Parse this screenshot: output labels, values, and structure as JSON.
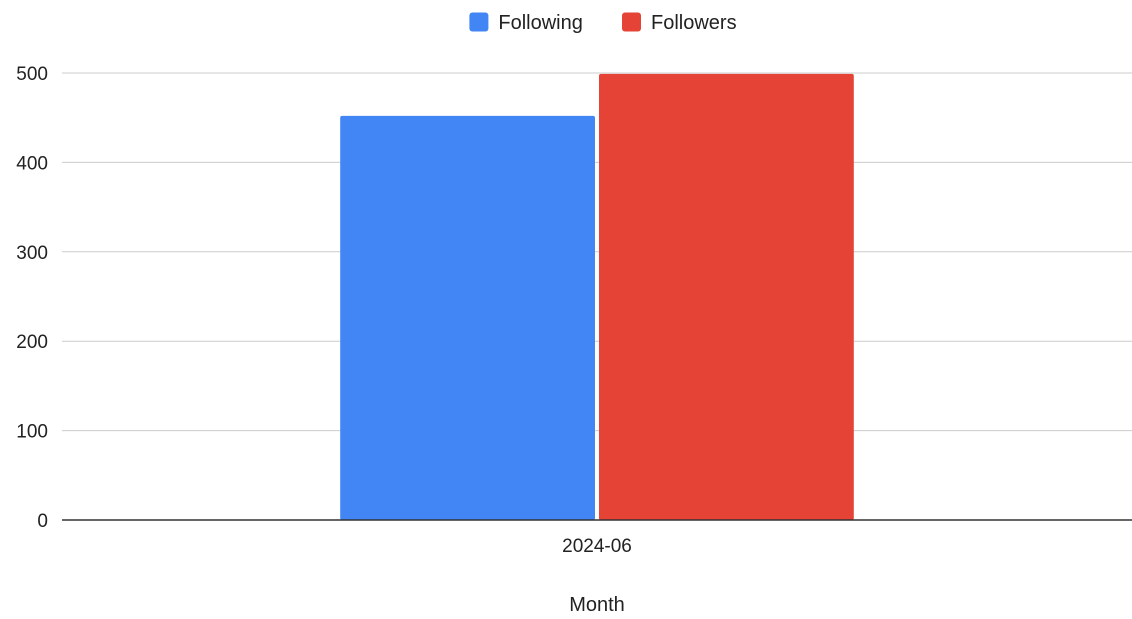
{
  "chart_data": {
    "type": "bar",
    "categories": [
      "2024-06"
    ],
    "series": [
      {
        "name": "Following",
        "values": [
          452
        ],
        "color": "#4285f4"
      },
      {
        "name": "Followers",
        "values": [
          499
        ],
        "color": "#e54335"
      }
    ],
    "xlabel": "Month",
    "ylabel": "",
    "ylim": [
      0,
      500
    ],
    "yticks": [
      0,
      100,
      200,
      300,
      400,
      500
    ],
    "grid": true,
    "legend_position": "top"
  }
}
